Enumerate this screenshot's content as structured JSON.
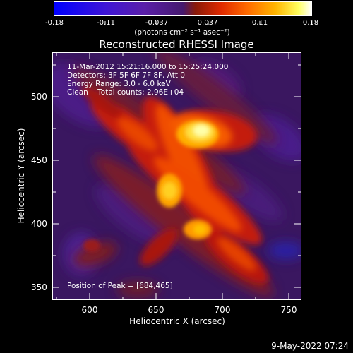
{
  "colorbar": {
    "ticks": [
      "-0.18",
      "-0.11",
      "-0.037",
      "0.037",
      "0.11",
      "0.18"
    ],
    "unit_label": "(photons cm⁻² s⁻¹ asec⁻²)"
  },
  "plot": {
    "title": "Reconstructed RHESSI Image",
    "info_lines": [
      "11-Mar-2012 15:21:16.000 to 15:25:24.000",
      "Detectors: 3F 5F 6F 7F 8F, Att 0",
      "Energy Range: 3.0 - 6.0 keV",
      "Clean    Total counts: 2.96E+04"
    ],
    "peak_label": "Position of Peak = [684,465]",
    "xlabel": "Heliocentric X (arcsec)",
    "ylabel": "Heliocentric Y (arcsec)",
    "xticks": [
      "600",
      "650",
      "700",
      "750"
    ],
    "yticks": [
      "350",
      "400",
      "450",
      "500"
    ]
  },
  "footer": {
    "timestamp": "9-May-2022 07:24"
  }
}
